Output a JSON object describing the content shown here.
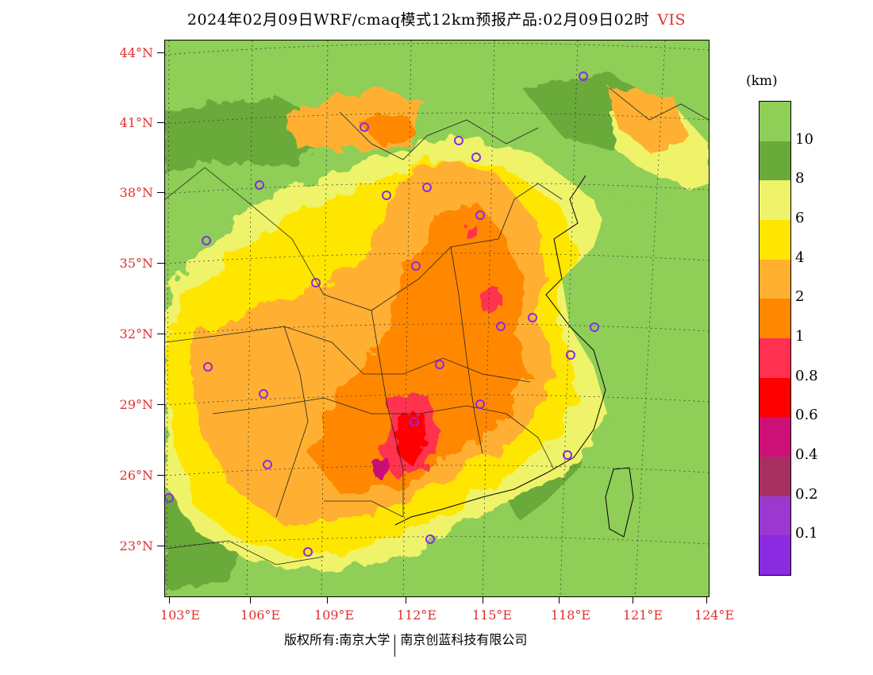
{
  "title": {
    "main": "2024年02月09日WRF/cmaq模式12km预报产品:02月09日02时",
    "variable": "VIS"
  },
  "map": {
    "lat_labels": [
      "44°N",
      "41°N",
      "38°N",
      "35°N",
      "32°N",
      "29°N",
      "26°N",
      "23°N"
    ],
    "lon_labels": [
      "103°E",
      "106°E",
      "109°E",
      "112°E",
      "115°E",
      "118°E",
      "121°E",
      "124°E"
    ],
    "station_marker_color": "#8a2be2",
    "colors": {
      "land_clear": "#8fce57",
      "ocean": "#8fce57"
    }
  },
  "legend": {
    "unit": "(km)",
    "bins": [
      {
        "label": "10",
        "color": "#8fce57"
      },
      {
        "label": "8",
        "color": "#6aaa3a"
      },
      {
        "label": "6",
        "color": "#eef36a"
      },
      {
        "label": "4",
        "color": "#ffe600"
      },
      {
        "label": "2",
        "color": "#ffb030"
      },
      {
        "label": "1",
        "color": "#ff8800"
      },
      {
        "label": "0.8",
        "color": "#ff3050"
      },
      {
        "label": "0.6",
        "color": "#ff0000"
      },
      {
        "label": "0.4",
        "color": "#cc1078"
      },
      {
        "label": "0.2",
        "color": "#a83060"
      },
      {
        "label": "0.1",
        "color": "#9a38d0"
      },
      {
        "label": "",
        "color": "#8a2be2"
      }
    ]
  },
  "footer": {
    "copyright": "版权所有:南京大学",
    "company": "南京创蓝科技有限公司"
  }
}
